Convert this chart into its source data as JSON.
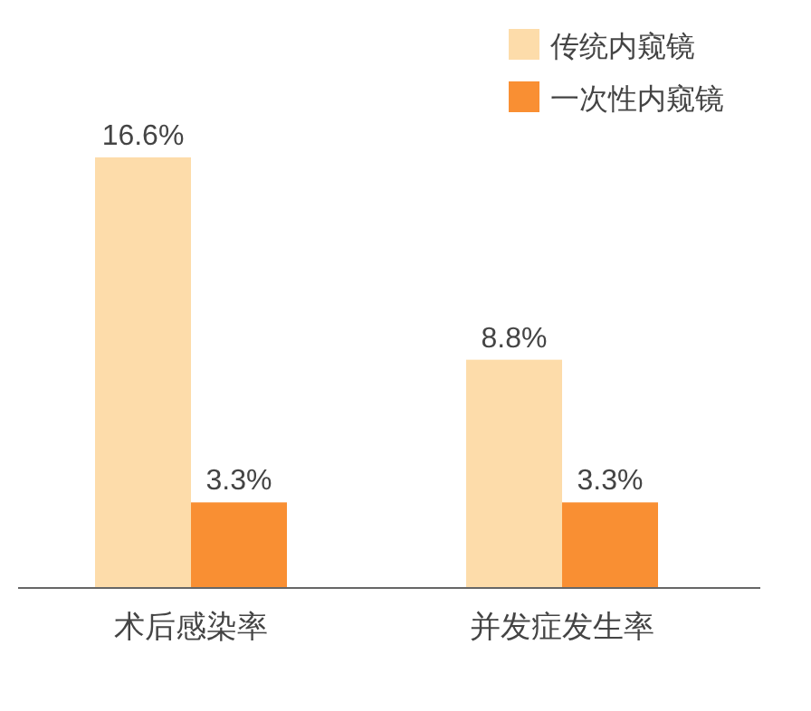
{
  "chart_data": {
    "type": "bar",
    "categories": [
      "术后感染率",
      "并发症发生率"
    ],
    "series": [
      {
        "name": "传统内窥镜",
        "color": "#fddcaa",
        "values": [
          16.6,
          8.8
        ],
        "value_labels": [
          "16.6%",
          "8.8%"
        ]
      },
      {
        "name": "一次性内窥镜",
        "color": "#f98f33",
        "values": [
          3.3,
          3.3
        ],
        "value_labels": [
          "3.3%",
          "3.3%"
        ]
      }
    ],
    "legend": "top right",
    "grid": false
  }
}
